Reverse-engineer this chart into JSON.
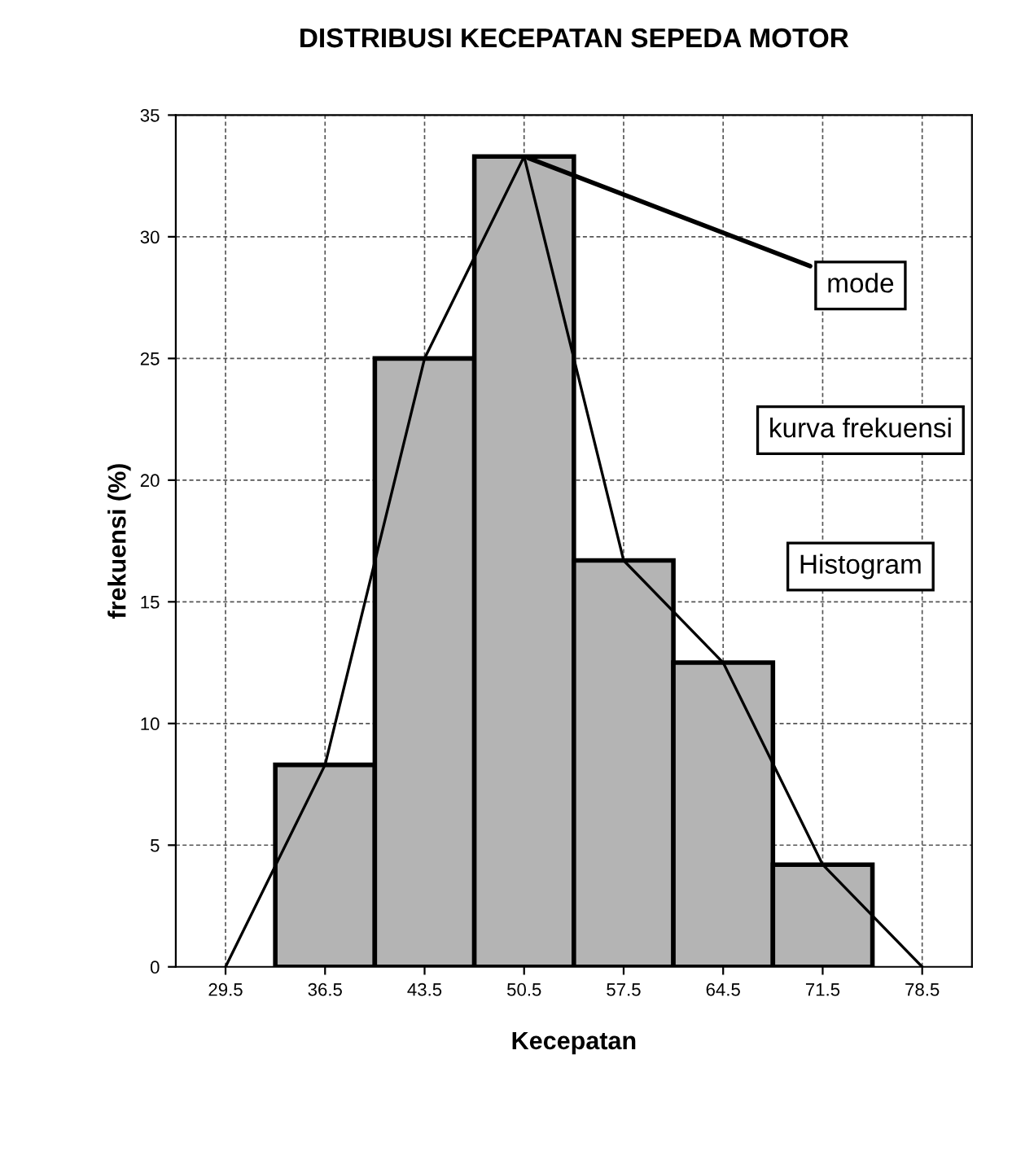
{
  "chart_data": {
    "type": "bar",
    "title": "DISTRIBUSI KECEPATAN SEPEDA MOTOR",
    "xlabel": "Kecepatan",
    "ylabel": "frekuensi (%)",
    "categories": [
      "29.5",
      "36.5",
      "43.5",
      "50.5",
      "57.5",
      "64.5",
      "71.5",
      "78.5"
    ],
    "series": [
      {
        "color": "#b4b4b4",
        "values": [
          null,
          8.3,
          25,
          33.3,
          16.7,
          12.5,
          4.2,
          null
        ]
      },
      {
        "type": "line",
        "color": "#000000",
        "values": [
          0,
          8.3,
          25,
          33.3,
          16.7,
          12.5,
          4.2,
          0
        ]
      }
    ],
    "ylim": [
      0,
      35
    ],
    "yticks": [
      0,
      5,
      10,
      15,
      20,
      25,
      30,
      35
    ],
    "grid": true,
    "annotations": [
      {
        "text": "mode",
        "x": "50.5",
        "y": 33.3
      },
      "kurva frekuensi",
      "Histogram"
    ]
  }
}
